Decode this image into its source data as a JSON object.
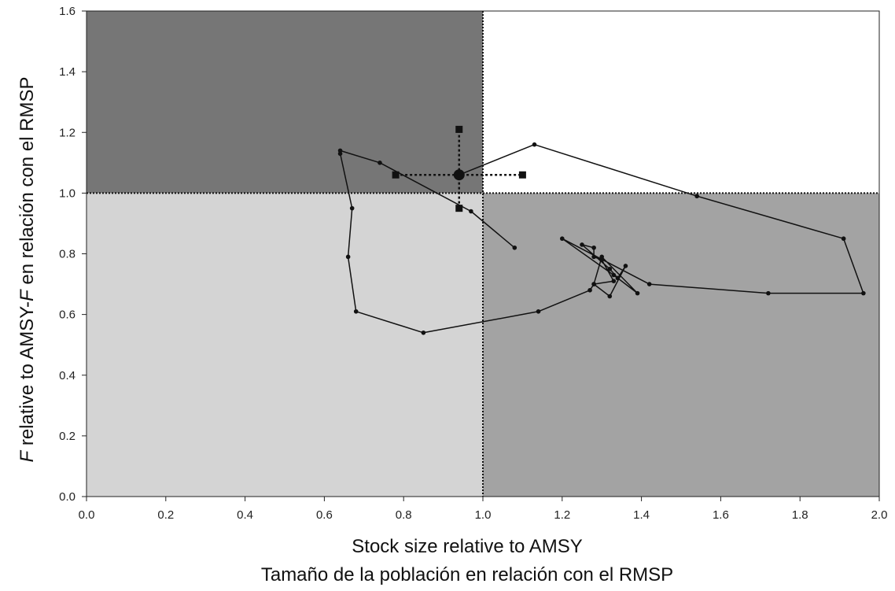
{
  "chart_data": {
    "type": "scatter",
    "title": "",
    "xlabel": [
      "Stock size relative to AMSY",
      "Tamaño de la población en relación con el RMSP"
    ],
    "ylabel": {
      "italic_prefix": "F",
      "text_1": " relative to AMSY-",
      "italic_mid": "F",
      "text_2": " en relación con el RMSP"
    },
    "xlim": [
      0.0,
      2.0
    ],
    "ylim": [
      0.0,
      1.6
    ],
    "x_ticks": [
      "0.0",
      "0.2",
      "0.4",
      "0.6",
      "0.8",
      "1.0",
      "1.2",
      "1.4",
      "1.6",
      "1.8",
      "2.0"
    ],
    "y_ticks": [
      "0.0",
      "0.2",
      "0.4",
      "0.6",
      "0.8",
      "1.0",
      "1.2",
      "1.4",
      "1.6"
    ],
    "reference_lines": {
      "x": 1.0,
      "y": 1.0,
      "style": "dotted"
    },
    "quadrant_colors": {
      "top_left": "#767676",
      "top_right": "#ffffff",
      "bottom_left": "#d4d4d4",
      "bottom_right": "#a3a3a3"
    },
    "trajectory": [
      {
        "x": 1.08,
        "y": 0.82
      },
      {
        "x": 0.97,
        "y": 0.94
      },
      {
        "x": 0.74,
        "y": 1.1
      },
      {
        "x": 0.64,
        "y": 1.14
      },
      {
        "x": 0.64,
        "y": 1.13
      },
      {
        "x": 0.67,
        "y": 0.95
      },
      {
        "x": 0.66,
        "y": 0.79
      },
      {
        "x": 0.68,
        "y": 0.61
      },
      {
        "x": 0.85,
        "y": 0.54
      },
      {
        "x": 1.14,
        "y": 0.61
      },
      {
        "x": 1.27,
        "y": 0.68
      },
      {
        "x": 1.28,
        "y": 0.7
      },
      {
        "x": 1.33,
        "y": 0.71
      },
      {
        "x": 1.3,
        "y": 0.78
      },
      {
        "x": 1.28,
        "y": 0.79
      },
      {
        "x": 1.28,
        "y": 0.82
      },
      {
        "x": 1.25,
        "y": 0.83
      },
      {
        "x": 1.32,
        "y": 0.75
      },
      {
        "x": 1.34,
        "y": 0.72
      },
      {
        "x": 1.36,
        "y": 0.76
      },
      {
        "x": 1.32,
        "y": 0.66
      },
      {
        "x": 1.28,
        "y": 0.7
      },
      {
        "x": 1.3,
        "y": 0.79
      },
      {
        "x": 1.39,
        "y": 0.67
      },
      {
        "x": 1.33,
        "y": 0.73
      },
      {
        "x": 1.2,
        "y": 0.85
      },
      {
        "x": 1.42,
        "y": 0.7
      },
      {
        "x": 1.72,
        "y": 0.67
      },
      {
        "x": 1.96,
        "y": 0.67
      },
      {
        "x": 1.91,
        "y": 0.85
      },
      {
        "x": 1.54,
        "y": 0.99
      },
      {
        "x": 1.13,
        "y": 1.16
      },
      {
        "x": 0.94,
        "y": 1.06
      }
    ],
    "current_estimate": {
      "x": 0.94,
      "y": 1.06
    },
    "x_interval": [
      0.78,
      1.1
    ],
    "y_interval": [
      0.95,
      1.21
    ],
    "line_color": "#111111",
    "marker_color": "#111111"
  }
}
